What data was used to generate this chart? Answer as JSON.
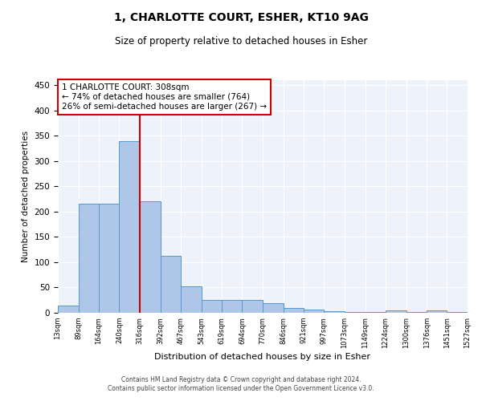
{
  "title1": "1, CHARLOTTE COURT, ESHER, KT10 9AG",
  "title2": "Size of property relative to detached houses in Esher",
  "xlabel": "Distribution of detached houses by size in Esher",
  "ylabel": "Number of detached properties",
  "bar_values": [
    15,
    215,
    215,
    340,
    220,
    113,
    53,
    26,
    25,
    25,
    19,
    9,
    6,
    3,
    1,
    1,
    4,
    1,
    4,
    1
  ],
  "bin_edges": [
    13,
    89,
    164,
    240,
    316,
    392,
    467,
    543,
    619,
    694,
    770,
    846,
    921,
    997,
    1073,
    1149,
    1224,
    1300,
    1376,
    1451,
    1527
  ],
  "bar_color": "#aec6e8",
  "bar_edge_color": "#5599cc",
  "property_line_x": 316,
  "property_line_color": "#cc0000",
  "annotation_line1": "1 CHARLOTTE COURT: 308sqm",
  "annotation_line2": "← 74% of detached houses are smaller (764)",
  "annotation_line3": "26% of semi-detached houses are larger (267) →",
  "annotation_box_color": "#cc0000",
  "ylim": [
    0,
    460
  ],
  "yticks": [
    0,
    50,
    100,
    150,
    200,
    250,
    300,
    350,
    400,
    450
  ],
  "background_color": "#eef2fb",
  "grid_color": "#ffffff",
  "footer1": "Contains HM Land Registry data © Crown copyright and database right 2024.",
  "footer2": "Contains public sector information licensed under the Open Government Licence v3.0.",
  "tick_labels": [
    "13sqm",
    "89sqm",
    "164sqm",
    "240sqm",
    "316sqm",
    "392sqm",
    "467sqm",
    "543sqm",
    "619sqm",
    "694sqm",
    "770sqm",
    "846sqm",
    "921sqm",
    "997sqm",
    "1073sqm",
    "1149sqm",
    "1224sqm",
    "1300sqm",
    "1376sqm",
    "1451sqm",
    "1527sqm"
  ]
}
